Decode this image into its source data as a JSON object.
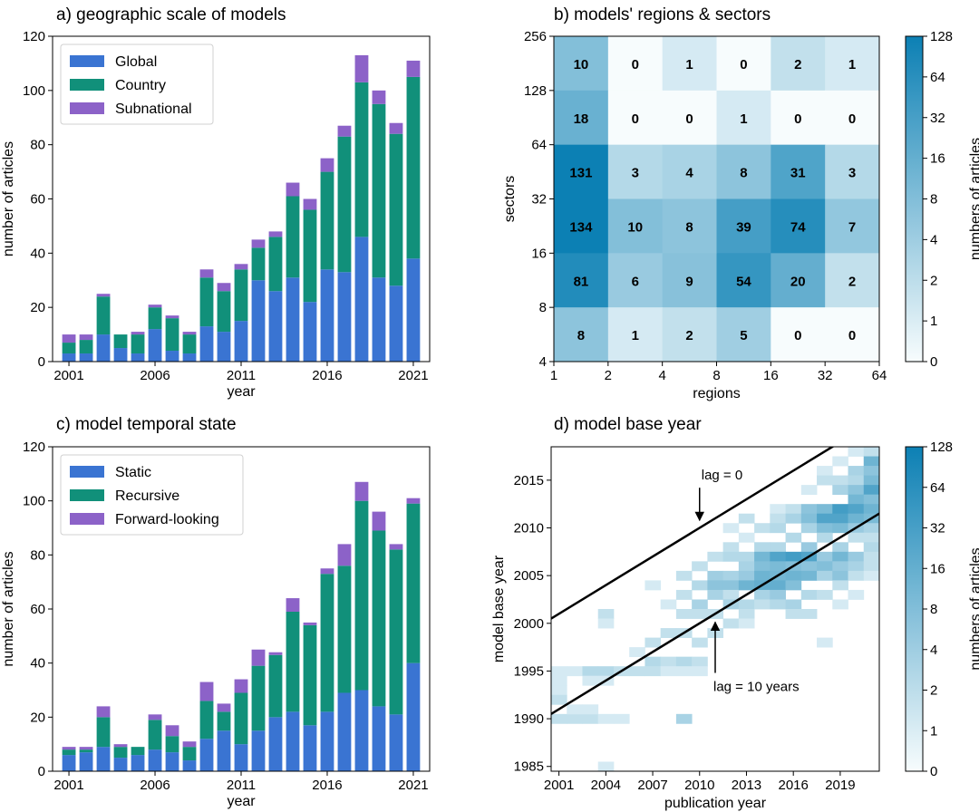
{
  "chart_data": [
    {
      "id": "a",
      "type": "bar",
      "stacked": true,
      "title": "a) geographic scale of models",
      "xlabel": "year",
      "ylabel": "number of articles",
      "ylim": [
        0,
        120
      ],
      "yticks": [
        0,
        20,
        40,
        60,
        80,
        100,
        120
      ],
      "xticks": [
        2001,
        2006,
        2011,
        2016,
        2021
      ],
      "legend_position": "top-left",
      "categories": [
        2001,
        2002,
        2003,
        2004,
        2005,
        2006,
        2007,
        2008,
        2009,
        2010,
        2011,
        2012,
        2013,
        2014,
        2015,
        2016,
        2017,
        2018,
        2019,
        2020,
        2021
      ],
      "series": [
        {
          "name": "Global",
          "color": "#3a74d2",
          "values": [
            3,
            3,
            10,
            5,
            3,
            12,
            4,
            3,
            13,
            11,
            15,
            30,
            26,
            31,
            22,
            34,
            33,
            46,
            31,
            28,
            38
          ]
        },
        {
          "name": "Country",
          "color": "#11907a",
          "values": [
            4,
            5,
            14,
            5,
            7,
            8,
            12,
            7,
            18,
            15,
            19,
            12,
            20,
            30,
            34,
            36,
            50,
            57,
            64,
            56,
            67
          ]
        },
        {
          "name": "Subnational",
          "color": "#8c62c8",
          "values": [
            3,
            2,
            1,
            0,
            1,
            1,
            1,
            1,
            3,
            3,
            2,
            3,
            2,
            5,
            4,
            5,
            4,
            10,
            5,
            4,
            6
          ]
        }
      ]
    },
    {
      "id": "b",
      "type": "heatmap",
      "title": "b) models' regions & sectors",
      "xlabel": "regions",
      "ylabel": "sectors",
      "x_edges": [
        "1",
        "2",
        "4",
        "8",
        "16",
        "32",
        "64"
      ],
      "y_edges": [
        "4",
        "8",
        "16",
        "32",
        "64",
        "128",
        "256"
      ],
      "values_top_to_bottom": [
        [
          10,
          0,
          1,
          0,
          2,
          1
        ],
        [
          18,
          0,
          0,
          1,
          0,
          0
        ],
        [
          131,
          3,
          4,
          8,
          31,
          3
        ],
        [
          134,
          10,
          8,
          39,
          74,
          7
        ],
        [
          81,
          6,
          9,
          54,
          20,
          2
        ],
        [
          8,
          1,
          2,
          5,
          0,
          0
        ]
      ],
      "colorbar_label": "numbers of articles",
      "colorbar_ticks": [
        "128",
        "64",
        "32",
        "16",
        "8",
        "4",
        "2",
        "1",
        "0"
      ]
    },
    {
      "id": "c",
      "type": "bar",
      "stacked": true,
      "title": "c) model temporal state",
      "xlabel": "year",
      "ylabel": "number of articles",
      "ylim": [
        0,
        120
      ],
      "yticks": [
        0,
        20,
        40,
        60,
        80,
        100,
        120
      ],
      "xticks": [
        2001,
        2006,
        2011,
        2016,
        2021
      ],
      "legend_position": "top-left",
      "categories": [
        2001,
        2002,
        2003,
        2004,
        2005,
        2006,
        2007,
        2008,
        2009,
        2010,
        2011,
        2012,
        2013,
        2014,
        2015,
        2016,
        2017,
        2018,
        2019,
        2020,
        2021
      ],
      "series": [
        {
          "name": "Static",
          "color": "#3a74d2",
          "values": [
            6,
            7,
            9,
            5,
            6,
            8,
            7,
            4,
            12,
            15,
            10,
            15,
            20,
            22,
            17,
            22,
            29,
            30,
            24,
            21,
            40
          ]
        },
        {
          "name": "Recursive",
          "color": "#11907a",
          "values": [
            2,
            1,
            11,
            4,
            3,
            11,
            6,
            5,
            14,
            7,
            19,
            24,
            23,
            37,
            37,
            51,
            47,
            70,
            65,
            61,
            59
          ]
        },
        {
          "name": "Forward-looking",
          "color": "#8c62c8",
          "values": [
            1,
            1,
            4,
            1,
            0,
            2,
            4,
            2,
            7,
            3,
            5,
            6,
            1,
            5,
            1,
            2,
            8,
            7,
            7,
            2,
            2
          ]
        }
      ]
    },
    {
      "id": "d",
      "type": "heatmap",
      "title": "d) model base year",
      "xlabel": "publication year",
      "ylabel": "model base year",
      "xlim": [
        2000.5,
        2021.5
      ],
      "ylim": [
        1984.5,
        2018.5
      ],
      "xticks": [
        2001,
        2004,
        2007,
        2010,
        2013,
        2016,
        2019
      ],
      "yticks": [
        1985,
        1990,
        1995,
        2000,
        2005,
        2010,
        2015
      ],
      "annotations": [
        {
          "text": "lag = 0",
          "arrow_to": [
            2010,
            2010.6
          ]
        },
        {
          "text": "lag = 10 years",
          "arrow_to": [
            2011,
            2000.5
          ]
        }
      ],
      "lines": [
        {
          "name": "lag = 0",
          "x": [
            2000.5,
            2021.5
          ],
          "y": [
            2000.5,
            2021.5
          ]
        },
        {
          "name": "lag = 10 years",
          "x": [
            2000.5,
            2021.5
          ],
          "y": [
            1990.5,
            2011.5
          ]
        }
      ],
      "cells": [
        [
          2001,
          1995,
          1
        ],
        [
          2001,
          1994,
          1
        ],
        [
          2001,
          1993,
          1
        ],
        [
          2001,
          1992,
          2
        ],
        [
          2001,
          1990,
          2
        ],
        [
          2002,
          1995,
          1
        ],
        [
          2002,
          1990,
          2
        ],
        [
          2002,
          1991,
          1
        ],
        [
          2003,
          1995,
          3
        ],
        [
          2003,
          1994,
          1
        ],
        [
          2003,
          1990,
          2
        ],
        [
          2003,
          1991,
          1
        ],
        [
          2004,
          2001,
          2
        ],
        [
          2004,
          2000,
          1
        ],
        [
          2004,
          1995,
          3
        ],
        [
          2004,
          1994,
          1
        ],
        [
          2004,
          1990,
          1
        ],
        [
          2004,
          1985,
          1
        ],
        [
          2005,
          1995,
          2
        ],
        [
          2005,
          1990,
          1
        ],
        [
          2006,
          1995,
          2
        ],
        [
          2006,
          1997,
          1
        ],
        [
          2007,
          2004,
          1
        ],
        [
          2007,
          1998,
          2
        ],
        [
          2007,
          1996,
          3
        ],
        [
          2007,
          1995,
          2
        ],
        [
          2008,
          2002,
          1
        ],
        [
          2008,
          1999,
          2
        ],
        [
          2008,
          1996,
          2
        ],
        [
          2008,
          1995,
          1
        ],
        [
          2009,
          2005,
          2
        ],
        [
          2009,
          2003,
          2
        ],
        [
          2009,
          2001,
          2
        ],
        [
          2009,
          1999,
          2
        ],
        [
          2009,
          1996,
          3
        ],
        [
          2009,
          1995,
          1
        ],
        [
          2009,
          1990,
          4
        ],
        [
          2010,
          2006,
          2
        ],
        [
          2010,
          2004,
          3
        ],
        [
          2010,
          2002,
          4
        ],
        [
          2010,
          2001,
          2
        ],
        [
          2010,
          1998,
          2
        ],
        [
          2010,
          1996,
          2
        ],
        [
          2010,
          1995,
          1
        ],
        [
          2011,
          2007,
          2
        ],
        [
          2011,
          2005,
          5
        ],
        [
          2011,
          2004,
          8
        ],
        [
          2011,
          2003,
          4
        ],
        [
          2011,
          2001,
          2
        ],
        [
          2011,
          1999,
          2
        ],
        [
          2012,
          2010,
          1
        ],
        [
          2012,
          2008,
          2
        ],
        [
          2012,
          2007,
          3
        ],
        [
          2012,
          2005,
          4
        ],
        [
          2012,
          2004,
          8
        ],
        [
          2012,
          2003,
          2
        ],
        [
          2012,
          2002,
          4
        ],
        [
          2012,
          2000,
          2
        ],
        [
          2013,
          2011,
          2
        ],
        [
          2013,
          2009,
          1
        ],
        [
          2013,
          2007,
          3
        ],
        [
          2013,
          2006,
          4
        ],
        [
          2013,
          2005,
          6
        ],
        [
          2013,
          2004,
          16
        ],
        [
          2013,
          2002,
          3
        ],
        [
          2013,
          2001,
          2
        ],
        [
          2013,
          2000,
          1
        ],
        [
          2014,
          2010,
          2
        ],
        [
          2014,
          2008,
          3
        ],
        [
          2014,
          2007,
          14
        ],
        [
          2014,
          2006,
          10
        ],
        [
          2014,
          2005,
          16
        ],
        [
          2014,
          2004,
          20
        ],
        [
          2014,
          2003,
          4
        ],
        [
          2014,
          2002,
          2
        ],
        [
          2015,
          2012,
          1
        ],
        [
          2015,
          2011,
          2
        ],
        [
          2015,
          2010,
          3
        ],
        [
          2015,
          2008,
          3
        ],
        [
          2015,
          2007,
          30
        ],
        [
          2015,
          2006,
          12
        ],
        [
          2015,
          2005,
          14
        ],
        [
          2015,
          2004,
          20
        ],
        [
          2015,
          2003,
          6
        ],
        [
          2015,
          2002,
          3
        ],
        [
          2016,
          2012,
          2
        ],
        [
          2016,
          2011,
          4
        ],
        [
          2016,
          2009,
          3
        ],
        [
          2016,
          2007,
          40
        ],
        [
          2016,
          2006,
          10
        ],
        [
          2016,
          2005,
          16
        ],
        [
          2016,
          2004,
          10
        ],
        [
          2016,
          2002,
          4
        ],
        [
          2016,
          2001,
          2
        ],
        [
          2017,
          2014,
          1
        ],
        [
          2017,
          2012,
          8
        ],
        [
          2017,
          2011,
          10
        ],
        [
          2017,
          2010,
          4
        ],
        [
          2017,
          2008,
          6
        ],
        [
          2017,
          2007,
          30
        ],
        [
          2017,
          2006,
          8
        ],
        [
          2017,
          2005,
          14
        ],
        [
          2017,
          2003,
          3
        ],
        [
          2017,
          2001,
          2
        ],
        [
          2018,
          2016,
          1
        ],
        [
          2018,
          2015,
          2
        ],
        [
          2018,
          2012,
          12
        ],
        [
          2018,
          2011,
          30
        ],
        [
          2018,
          2010,
          10
        ],
        [
          2018,
          2009,
          3
        ],
        [
          2018,
          2007,
          6
        ],
        [
          2018,
          2006,
          10
        ],
        [
          2018,
          2005,
          4
        ],
        [
          2018,
          2003,
          2
        ],
        [
          2018,
          1998,
          1
        ],
        [
          2019,
          2017,
          1
        ],
        [
          2019,
          2015,
          2
        ],
        [
          2019,
          2014,
          4
        ],
        [
          2019,
          2012,
          40
        ],
        [
          2019,
          2011,
          30
        ],
        [
          2019,
          2010,
          12
        ],
        [
          2019,
          2008,
          4
        ],
        [
          2019,
          2007,
          14
        ],
        [
          2019,
          2006,
          6
        ],
        [
          2019,
          2005,
          8
        ],
        [
          2019,
          2004,
          2
        ],
        [
          2019,
          2002,
          1
        ],
        [
          2020,
          2018,
          1
        ],
        [
          2020,
          2016,
          4
        ],
        [
          2020,
          2015,
          3
        ],
        [
          2020,
          2014,
          8
        ],
        [
          2020,
          2013,
          14
        ],
        [
          2020,
          2012,
          30
        ],
        [
          2020,
          2011,
          16
        ],
        [
          2020,
          2010,
          6
        ],
        [
          2020,
          2009,
          2
        ],
        [
          2020,
          2007,
          6
        ],
        [
          2020,
          2006,
          4
        ],
        [
          2020,
          2005,
          2
        ],
        [
          2020,
          2003,
          1
        ],
        [
          2021,
          2018,
          2
        ],
        [
          2021,
          2017,
          16
        ],
        [
          2021,
          2016,
          8
        ],
        [
          2021,
          2015,
          12
        ],
        [
          2021,
          2014,
          30
        ],
        [
          2021,
          2013,
          10
        ],
        [
          2021,
          2012,
          16
        ],
        [
          2021,
          2011,
          12
        ],
        [
          2021,
          2010,
          4
        ],
        [
          2021,
          2009,
          2
        ],
        [
          2021,
          2008,
          3
        ],
        [
          2021,
          2007,
          2
        ],
        [
          2021,
          2006,
          2
        ],
        [
          2021,
          2005,
          1
        ]
      ],
      "colorbar_label": "numbers of articles",
      "colorbar_ticks": [
        "128",
        "64",
        "32",
        "16",
        "8",
        "4",
        "2",
        "1",
        "0"
      ]
    }
  ]
}
